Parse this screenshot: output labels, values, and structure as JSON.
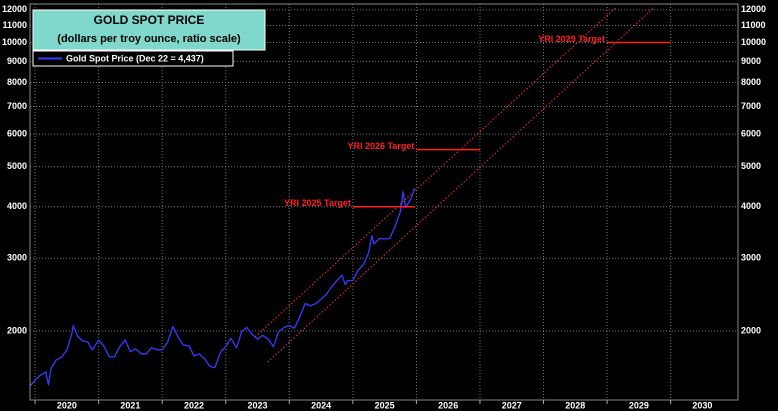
{
  "chart_data": {
    "type": "line",
    "title": "GOLD SPOT PRICE",
    "subtitle": "(dollars per troy ounce, ratio scale)",
    "log_scale": true,
    "grid": true,
    "legend": "upper left",
    "xlim": [
      2019.92,
      2031.06
    ],
    "xticks": [
      2020,
      2021,
      2022,
      2023,
      2024,
      2025,
      2026,
      2027,
      2028,
      2029,
      2030
    ],
    "ylim": [
      1360,
      12400
    ],
    "yticks": [
      2000,
      3000,
      4000,
      5000,
      6000,
      7000,
      8000,
      9000,
      10000,
      11000,
      12000
    ],
    "series": [
      {
        "name": "Gold Spot Price (Dec 22 = 4,437)",
        "color": "#3a3aff",
        "x": [
          2019.92,
          2020.0,
          2020.08,
          2020.17,
          2020.21,
          2020.25,
          2020.33,
          2020.42,
          2020.5,
          2020.58,
          2020.6,
          2020.67,
          2020.75,
          2020.83,
          2020.9,
          2021.0,
          2021.08,
          2021.17,
          2021.25,
          2021.33,
          2021.42,
          2021.5,
          2021.58,
          2021.67,
          2021.75,
          2021.83,
          2021.92,
          2022.0,
          2022.08,
          2022.17,
          2022.25,
          2022.33,
          2022.42,
          2022.5,
          2022.58,
          2022.67,
          2022.75,
          2022.83,
          2022.92,
          2023.0,
          2023.08,
          2023.17,
          2023.25,
          2023.33,
          2023.42,
          2023.5,
          2023.58,
          2023.67,
          2023.75,
          2023.83,
          2023.92,
          2024.0,
          2024.08,
          2024.17,
          2024.25,
          2024.33,
          2024.42,
          2024.5,
          2024.58,
          2024.67,
          2024.75,
          2024.83,
          2024.88,
          2024.92,
          2025.0,
          2025.08,
          2025.17,
          2025.25,
          2025.3,
          2025.33,
          2025.42,
          2025.5,
          2025.58,
          2025.67,
          2025.75,
          2025.79,
          2025.83,
          2025.88,
          2025.92,
          2025.97
        ],
        "values": [
          1470,
          1520,
          1560,
          1590,
          1480,
          1620,
          1700,
          1730,
          1800,
          1970,
          2060,
          1940,
          1890,
          1880,
          1800,
          1900,
          1840,
          1730,
          1730,
          1830,
          1900,
          1780,
          1810,
          1760,
          1760,
          1820,
          1800,
          1800,
          1870,
          2050,
          1930,
          1850,
          1840,
          1740,
          1760,
          1710,
          1640,
          1630,
          1780,
          1830,
          1920,
          1820,
          1990,
          2040,
          1960,
          1910,
          1950,
          1910,
          1830,
          1990,
          2040,
          2060,
          2030,
          2170,
          2330,
          2300,
          2330,
          2390,
          2450,
          2560,
          2650,
          2730,
          2590,
          2650,
          2650,
          2800,
          2900,
          3100,
          3400,
          3250,
          3350,
          3340,
          3350,
          3600,
          3900,
          4350,
          3980,
          4100,
          4200,
          4437
        ]
      }
    ],
    "trend_lines": [
      {
        "color": "#ff3030",
        "x": [
          2023.46,
          2029.15
        ],
        "values": [
          1934,
          12200
        ]
      },
      {
        "color": "#ff3030",
        "x": [
          2023.66,
          2029.75
        ],
        "values": [
          1680,
          12200
        ]
      }
    ],
    "targets": [
      {
        "label": "YRI 2025 Target",
        "value": 4000,
        "x": [
          2025.0,
          2025.97
        ],
        "color": "#ff2020"
      },
      {
        "label": "YRI 2026 Target",
        "value": 5500,
        "x": [
          2026.0,
          2027.0
        ],
        "color": "#ff2020"
      },
      {
        "label": "YRI 2029 Target",
        "value": 10000,
        "x": [
          2029.0,
          2030.0
        ],
        "color": "#ff2020"
      }
    ]
  }
}
